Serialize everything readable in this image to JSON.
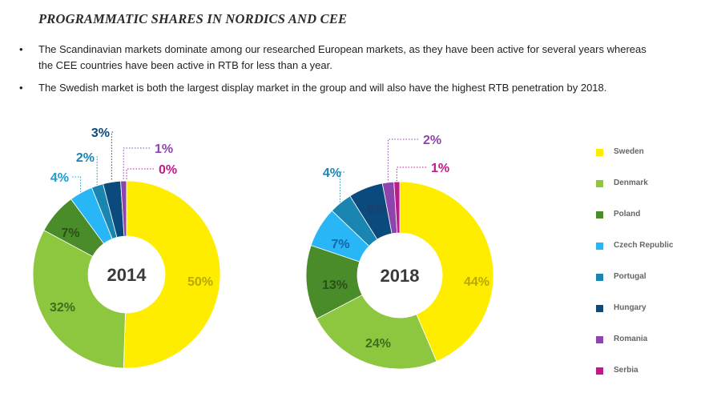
{
  "header": {
    "title": "PROGRAMMATIC SHARES IN NORDICS AND CEE",
    "bullet_marker": "•",
    "bullets": [
      "The Scandinavian markets dominate among our researched European markets, as they have been active for several years whereas the CEE countries have been active in RTB for less than a year.",
      "The Swedish market is both the largest display market in the group and will also have the highest RTB penetration by 2018."
    ]
  },
  "legend": {
    "items": [
      {
        "label": "Sweden",
        "color": "#FFED00"
      },
      {
        "label": "Denmark",
        "color": "#8DC63F"
      },
      {
        "label": "Poland",
        "color": "#4A8C2A"
      },
      {
        "label": "Czech Republic",
        "color": "#29B6F6"
      },
      {
        "label": "Portugal",
        "color": "#1A85B0"
      },
      {
        "label": "Hungary",
        "color": "#0B4A7D"
      },
      {
        "label": "Romania",
        "color": "#8E44AD"
      },
      {
        "label": "Serbia",
        "color": "#C2188B"
      }
    ]
  },
  "chart_data": [
    {
      "type": "pie",
      "title": "2014",
      "categories": [
        "Sweden",
        "Denmark",
        "Poland",
        "Czech Republic",
        "Portugal",
        "Hungary",
        "Romania",
        "Serbia"
      ],
      "values": [
        50,
        32,
        7,
        4,
        2,
        3,
        1,
        0
      ],
      "labels": [
        "50%",
        "32%",
        "7%",
        "4%",
        "2%",
        "3%",
        "1%",
        "0%"
      ],
      "colors": [
        "#FFED00",
        "#8DC63F",
        "#4A8C2A",
        "#29B6F6",
        "#1A85B0",
        "#0B4A7D",
        "#8E44AD",
        "#C2188B"
      ],
      "label_colors": [
        "#B8A800",
        "#3D6E1C",
        "#2A4F17",
        "#1E9BD7",
        "#1A85B0",
        "#0B4A7D",
        "#8E44AD",
        "#C2188B"
      ]
    },
    {
      "type": "pie",
      "title": "2018",
      "categories": [
        "Sweden",
        "Denmark",
        "Poland",
        "Czech Republic",
        "Portugal",
        "Hungary",
        "Romania",
        "Serbia"
      ],
      "values": [
        44,
        24,
        13,
        7,
        4,
        6,
        2,
        1
      ],
      "labels": [
        "44%",
        "24%",
        "13%",
        "7%",
        "4%",
        "6%",
        "2%",
        "1%"
      ],
      "colors": [
        "#FFED00",
        "#8DC63F",
        "#4A8C2A",
        "#29B6F6",
        "#1A85B0",
        "#0B4A7D",
        "#8E44AD",
        "#C2188B"
      ],
      "label_colors": [
        "#B8A800",
        "#3D6E1C",
        "#2A4F17",
        "#1565A8",
        "#1A85B0",
        "#1A3E6E",
        "#8E44AD",
        "#C2188B"
      ]
    }
  ]
}
